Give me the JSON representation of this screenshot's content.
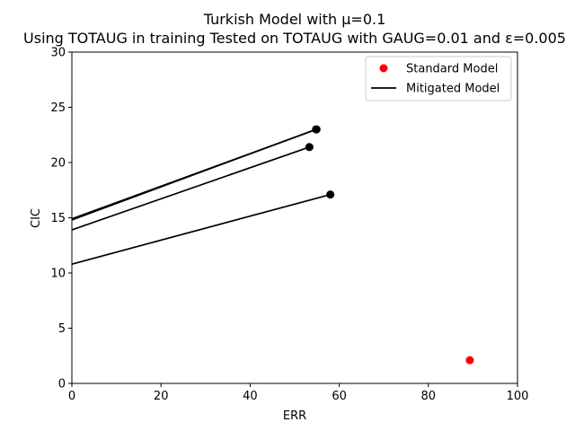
{
  "chart_data": {
    "type": "scatter",
    "title_line1": "Turkish Model with μ=0.1",
    "title_line2": "Using TOTAUG in training Tested on TOTAUG with GAUG=0.01 and ε=0.005",
    "xlabel": "ERR",
    "ylabel": "CIC",
    "xlim": [
      0,
      100
    ],
    "ylim": [
      0,
      30
    ],
    "xticks": [
      0,
      20,
      40,
      60,
      80,
      100
    ],
    "yticks": [
      0,
      5,
      10,
      15,
      20,
      25,
      30
    ],
    "grid": false,
    "legend_position": "top-right",
    "standard_model": {
      "name": "Standard Model",
      "color": "#ff0000",
      "points": [
        {
          "x": 89.3,
          "y": 2.1
        }
      ]
    },
    "mitigated_model": {
      "name": "Mitigated Model",
      "color": "#000000",
      "lines": [
        {
          "start": {
            "x": 0,
            "y": 14.8
          },
          "end": {
            "x": 54.8,
            "y": 23.0
          }
        },
        {
          "start": {
            "x": 0,
            "y": 14.9
          },
          "end": {
            "x": 54.9,
            "y": 23.0
          }
        },
        {
          "start": {
            "x": 0,
            "y": 13.9
          },
          "end": {
            "x": 53.3,
            "y": 21.4
          }
        },
        {
          "start": {
            "x": 0,
            "y": 10.8
          },
          "end": {
            "x": 58.0,
            "y": 17.1
          }
        }
      ]
    }
  }
}
